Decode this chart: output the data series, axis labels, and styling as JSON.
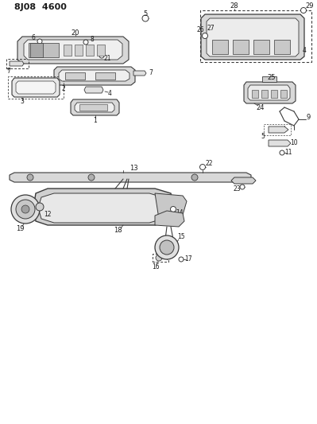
{
  "title": "8J08  4600",
  "bg_color": "#ffffff",
  "lc": "#3a3a3a",
  "tc": "#1a1a1a",
  "figsize": [
    3.99,
    5.33
  ],
  "dpi": 100
}
